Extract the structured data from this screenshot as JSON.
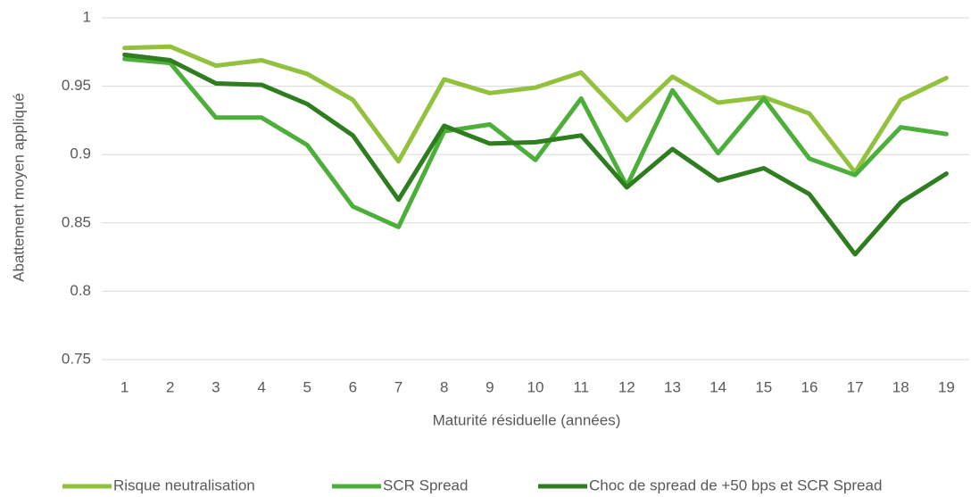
{
  "chart_data": {
    "type": "line",
    "x_label": "Maturité résiduelle (années)",
    "y_label": "Abattement moyen appliqué",
    "categories": [
      "1",
      "2",
      "3",
      "4",
      "5",
      "6",
      "7",
      "8",
      "9",
      "10",
      "11",
      "12",
      "13",
      "14",
      "15",
      "16",
      "17",
      "18",
      "19"
    ],
    "series": [
      {
        "name": "Risque neutralisation",
        "color": "#92c13e",
        "values": [
          0.978,
          0.979,
          0.965,
          0.969,
          0.959,
          0.94,
          0.895,
          0.955,
          0.945,
          0.949,
          0.96,
          0.925,
          0.957,
          0.938,
          0.942,
          0.93,
          0.887,
          0.94,
          0.956
        ]
      },
      {
        "name": "SCR Spread",
        "color": "#4caf3a",
        "values": [
          0.97,
          0.967,
          0.927,
          0.927,
          0.907,
          0.862,
          0.847,
          0.917,
          0.922,
          0.896,
          0.941,
          0.877,
          0.947,
          0.901,
          0.941,
          0.897,
          0.885,
          0.92,
          0.915
        ]
      },
      {
        "name": "Choc de spread de +50 bps et SCR Spread",
        "color": "#2e7d1f",
        "values": [
          0.973,
          0.969,
          0.952,
          0.951,
          0.937,
          0.914,
          0.867,
          0.921,
          0.908,
          0.909,
          0.914,
          0.876,
          0.904,
          0.881,
          0.89,
          0.871,
          0.827,
          0.865,
          0.886
        ]
      }
    ],
    "ylim": [
      0.75,
      1
    ],
    "yticks": [
      0.75,
      0.8,
      0.85,
      0.9,
      0.95,
      1
    ],
    "grid": true,
    "legend": "bottom"
  }
}
